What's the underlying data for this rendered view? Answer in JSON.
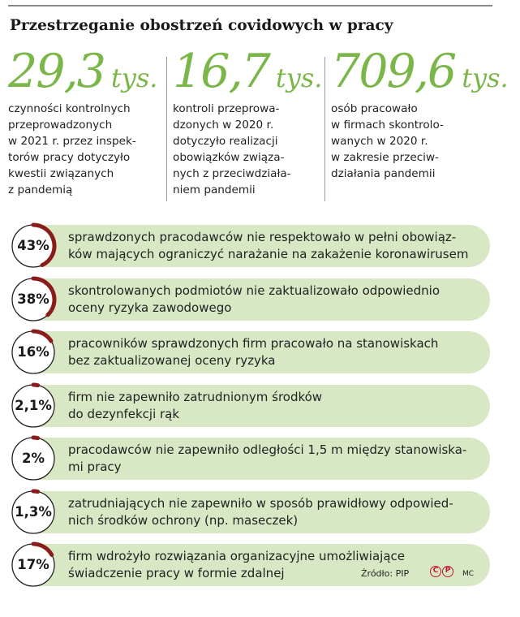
{
  "title": "Przestrzeganie obostrzeń covidowych w pracy",
  "stats": [
    {
      "value": "29,3",
      "unit": "tys.",
      "desc": [
        "czynności kontrolnych",
        "przeprowadzonych",
        "w 2021 r. przez inspek-",
        "torów pracy dotyczyło",
        "kwestii związanych",
        "z pandemią"
      ]
    },
    {
      "value": "16,7",
      "unit": "tys.",
      "desc": [
        "kontroli przeprowa-",
        "dzonych w 2020 r.",
        "dotyczyło realizacji",
        "obowiązków związa-",
        "nych z przeciwdziała-",
        "niem pandemii"
      ]
    },
    {
      "value": "709,6",
      "unit": "tys.",
      "desc": [
        "osób pracowało",
        "w firmach skontrolo-",
        "wanych w 2020 r.",
        "w zakresie przeciw-",
        "działania pandemii"
      ]
    }
  ],
  "chart_data": {
    "type": "bar",
    "items": [
      {
        "label": "43%",
        "value": 43,
        "text": [
          "sprawdzonych pracodawców nie respektowało w pełni obowiąz-",
          "ków mających ograniczyć narażanie na zakażenie koronawirusem"
        ]
      },
      {
        "label": "38%",
        "value": 38,
        "text": [
          "skontrolowanych podmiotów nie zaktualizowało odpowiednio",
          "oceny ryzyka zawodowego"
        ]
      },
      {
        "label": "16%",
        "value": 16,
        "text": [
          "pracowników sprawdzonych firm pracowało na stanowiskach",
          "bez zaktualizowanej oceny ryzyka"
        ]
      },
      {
        "label": "2,1%",
        "value": 2.1,
        "text": [
          "firm nie zapewniło zatrudnionym środków",
          "do dezynfekcji rąk"
        ]
      },
      {
        "label": "2%",
        "value": 2,
        "text": [
          "pracodawców nie zapewniło odległości 1,5 m między stanowiska-",
          "mi pracy"
        ]
      },
      {
        "label": "1,3%",
        "value": 1.3,
        "text": [
          "zatrudniających nie zapewniło w sposób prawidłowy odpowied-",
          "nich środków ochrony (np. maseczek)"
        ]
      },
      {
        "label": "17%",
        "value": 17,
        "text": [
          "firm wdrożyło rozwiązania organizacyjne umożliwiające",
          "świadczenie pracy w formie zdalnej"
        ]
      }
    ]
  },
  "footer": {
    "source": "Źródło: PIP",
    "logo_c": "C",
    "logo_p": "P",
    "author": "MC"
  },
  "colors": {
    "green_text": "#7ab648",
    "pill": "#d9e8c4",
    "arc": "#8b1c1c",
    "ring_bg": "#ffffff"
  }
}
